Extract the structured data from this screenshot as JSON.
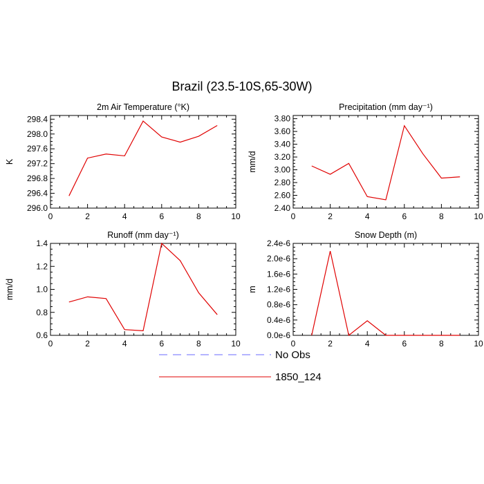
{
  "figure": {
    "title": "Brazil (23.5-10S,65-30W)"
  },
  "legend": {
    "entries": [
      {
        "label": "No Obs",
        "color": "#6a6aff",
        "dash": true
      },
      {
        "label": "1850_124",
        "color": "#e00000",
        "dash": false
      }
    ]
  },
  "chart_data": [
    {
      "type": "line",
      "title": "2m Air Temperature (°K)",
      "ylabel": "K",
      "xlim": [
        0,
        10
      ],
      "ylim": [
        296.0,
        298.5
      ],
      "xticks": [
        0,
        2,
        4,
        6,
        8,
        10
      ],
      "xtick_labels": [
        "0",
        "2",
        "4",
        "6",
        "8",
        "10"
      ],
      "yticks": [
        296.0,
        296.4,
        296.8,
        297.2,
        297.6,
        298.0,
        298.4
      ],
      "ytick_labels": [
        "296.0",
        "296.4",
        "296.8",
        "297.2",
        "297.6",
        "298.0",
        "298.4"
      ],
      "series": [
        {
          "name": "1850_124",
          "color": "#e00000",
          "x": [
            1,
            2,
            3,
            4,
            5,
            6,
            7,
            8,
            9
          ],
          "values": [
            296.33,
            297.35,
            297.46,
            297.41,
            298.35,
            297.92,
            297.78,
            297.94,
            298.23
          ]
        }
      ]
    },
    {
      "type": "line",
      "title": "Precipitation (mm day⁻¹)",
      "ylabel": "mm/d",
      "xlim": [
        0,
        10
      ],
      "ylim": [
        2.4,
        3.85
      ],
      "xticks": [
        0,
        2,
        4,
        6,
        8,
        10
      ],
      "xtick_labels": [
        "0",
        "2",
        "4",
        "6",
        "8",
        "10"
      ],
      "yticks": [
        2.4,
        2.6,
        2.8,
        3.0,
        3.2,
        3.4,
        3.6,
        3.8
      ],
      "ytick_labels": [
        "2.40",
        "2.60",
        "2.80",
        "3.00",
        "3.20",
        "3.40",
        "3.60",
        "3.80"
      ],
      "series": [
        {
          "name": "1850_124",
          "color": "#e00000",
          "x": [
            1,
            2,
            3,
            4,
            5,
            6,
            7,
            8,
            9
          ],
          "values": [
            3.06,
            2.93,
            3.1,
            2.58,
            2.53,
            3.69,
            3.25,
            2.87,
            2.89
          ]
        }
      ]
    },
    {
      "type": "line",
      "title": "Runoff (mm day⁻¹)",
      "ylabel": "mm/d",
      "xlim": [
        0,
        10
      ],
      "ylim": [
        0.6,
        1.4
      ],
      "xticks": [
        0,
        2,
        4,
        6,
        8,
        10
      ],
      "xtick_labels": [
        "0",
        "2",
        "4",
        "6",
        "8",
        "10"
      ],
      "yticks": [
        0.6,
        0.8,
        1.0,
        1.2,
        1.4
      ],
      "ytick_labels": [
        "0.6",
        "0.8",
        "1.0",
        "1.2",
        "1.4"
      ],
      "series": [
        {
          "name": "1850_124",
          "color": "#e00000",
          "x": [
            1,
            2,
            3,
            4,
            5,
            6,
            7,
            8,
            9
          ],
          "values": [
            0.89,
            0.935,
            0.92,
            0.65,
            0.64,
            1.4,
            1.25,
            0.97,
            0.78
          ]
        }
      ]
    },
    {
      "type": "line",
      "title": "Snow Depth (m)",
      "ylabel": "m",
      "xlim": [
        0,
        10
      ],
      "ylim": [
        0,
        2.4e-06
      ],
      "xticks": [
        0,
        2,
        4,
        6,
        8,
        10
      ],
      "xtick_labels": [
        "0",
        "2",
        "4",
        "6",
        "8",
        "10"
      ],
      "yticks": [
        0,
        4e-07,
        8e-07,
        1.2e-06,
        1.6e-06,
        2e-06,
        2.4e-06
      ],
      "ytick_labels": [
        "0.0e-6",
        "0.4e-6",
        "0.8e-6",
        "1.2e-6",
        "1.6e-6",
        "2.0e-6",
        "2.4e-6"
      ],
      "series": [
        {
          "name": "1850_124",
          "color": "#e00000",
          "x": [
            1,
            2,
            3,
            4,
            5,
            6,
            7,
            8,
            9
          ],
          "values": [
            0,
            2.2e-06,
            0,
            3.8e-07,
            0,
            0,
            0,
            0,
            0
          ]
        }
      ]
    }
  ]
}
